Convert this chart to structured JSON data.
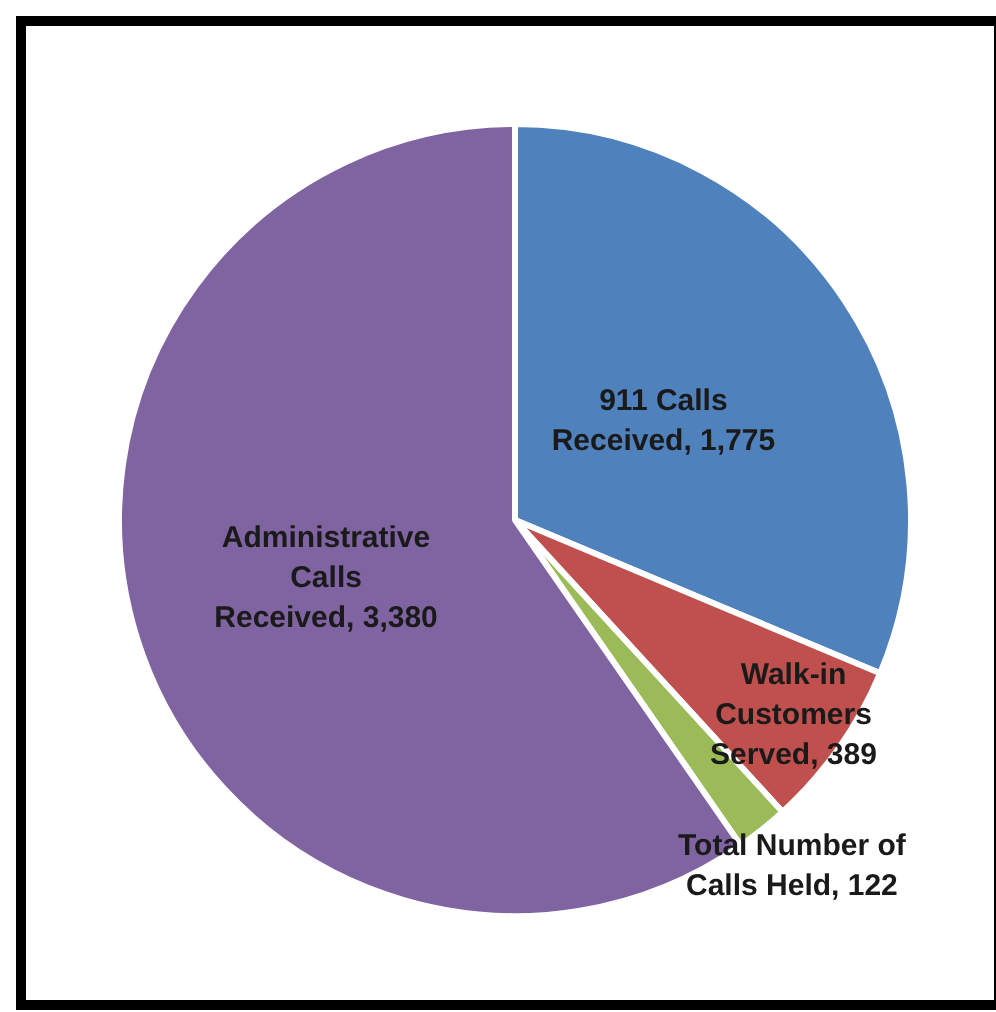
{
  "chart_data": {
    "type": "pie",
    "categories": [
      "911 Calls Received",
      "Walk-in Customers Served",
      "Total Number of Calls Held",
      "Administrative Calls Received"
    ],
    "value_labels": [
      "1,775",
      "389",
      "122",
      "3,380"
    ],
    "values": [
      1775,
      389,
      122,
      3380
    ],
    "colors": [
      "#4f81bd",
      "#c0504d",
      "#9bbb59",
      "#8064a2"
    ],
    "data_labels": true,
    "legend": false
  }
}
